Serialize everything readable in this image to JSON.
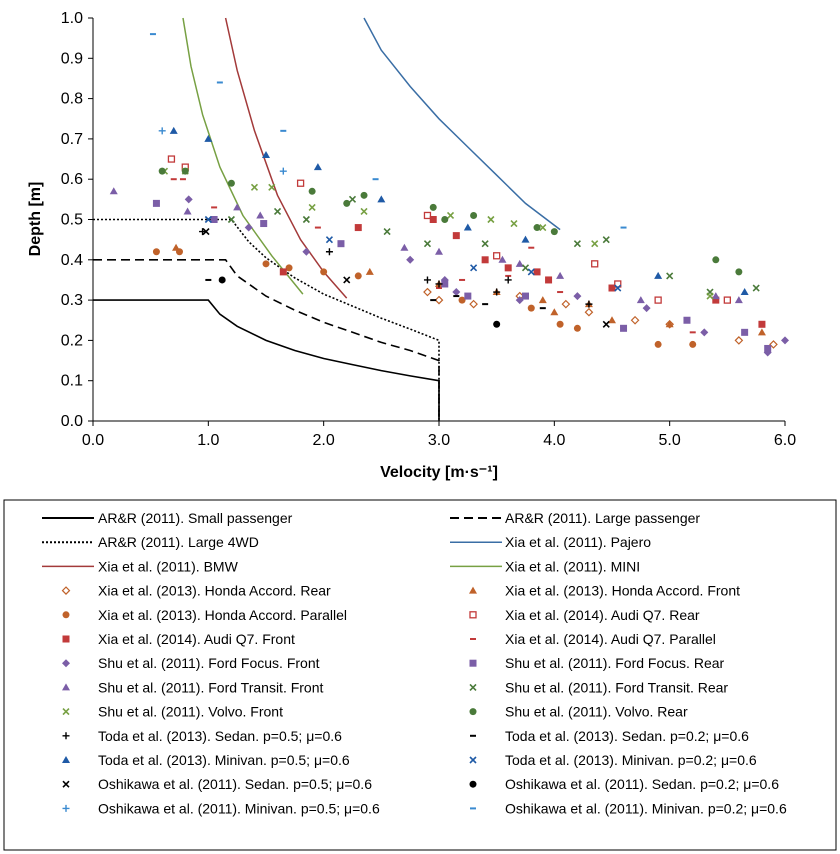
{
  "chart_data": {
    "type": "scatter",
    "xlabel": "Velocity [m·s⁻¹]",
    "ylabel": "Depth [m]",
    "xlim": [
      0,
      6
    ],
    "ylim": [
      0,
      1
    ],
    "x_ticks": [
      "0.0",
      "1.0",
      "2.0",
      "3.0",
      "4.0",
      "5.0",
      "6.0"
    ],
    "y_ticks": [
      "0.0",
      "0.1",
      "0.2",
      "0.3",
      "0.4",
      "0.5",
      "0.6",
      "0.7",
      "0.8",
      "0.9",
      "1.0"
    ],
    "grid": false,
    "legend_position": "bottom",
    "series": [
      {
        "name": "AR&R (2011). Small passenger",
        "kind": "line",
        "color": "#000000",
        "dash": "solid",
        "points": [
          [
            0,
            0.3
          ],
          [
            1.0,
            0.3
          ],
          [
            1.1,
            0.265
          ],
          [
            1.25,
            0.235
          ],
          [
            1.5,
            0.2
          ],
          [
            1.75,
            0.175
          ],
          [
            2.0,
            0.155
          ],
          [
            2.25,
            0.14
          ],
          [
            2.5,
            0.125
          ],
          [
            2.75,
            0.112
          ],
          [
            3.0,
            0.1
          ],
          [
            3.0,
            0.0
          ]
        ]
      },
      {
        "name": "AR&R (2011). Large passenger",
        "kind": "line",
        "color": "#000000",
        "dash": "dashed",
        "points": [
          [
            0,
            0.4
          ],
          [
            1.15,
            0.4
          ],
          [
            1.25,
            0.36
          ],
          [
            1.5,
            0.31
          ],
          [
            1.75,
            0.275
          ],
          [
            2.0,
            0.245
          ],
          [
            2.25,
            0.22
          ],
          [
            2.5,
            0.195
          ],
          [
            2.75,
            0.175
          ],
          [
            3.0,
            0.15
          ],
          [
            3.0,
            0.0
          ]
        ]
      },
      {
        "name": "AR&R (2011). Large 4WD",
        "kind": "line",
        "color": "#000000",
        "dash": "dotted",
        "points": [
          [
            0,
            0.5
          ],
          [
            1.2,
            0.5
          ],
          [
            1.35,
            0.445
          ],
          [
            1.5,
            0.405
          ],
          [
            1.75,
            0.355
          ],
          [
            2.0,
            0.315
          ],
          [
            2.25,
            0.285
          ],
          [
            2.5,
            0.255
          ],
          [
            2.75,
            0.228
          ],
          [
            3.0,
            0.2
          ],
          [
            3.0,
            0.0
          ]
        ]
      },
      {
        "name": "Xia et al. (2011). Pajero",
        "kind": "line",
        "color": "#3a6ea5",
        "dash": "solid",
        "points": [
          [
            2.35,
            1.0
          ],
          [
            2.5,
            0.92
          ],
          [
            2.75,
            0.83
          ],
          [
            3.0,
            0.75
          ],
          [
            3.25,
            0.68
          ],
          [
            3.5,
            0.61
          ],
          [
            3.75,
            0.54
          ],
          [
            4.05,
            0.475
          ]
        ]
      },
      {
        "name": "Xia et al. (2011). BMW",
        "kind": "line",
        "color": "#a33a3a",
        "dash": "solid",
        "points": [
          [
            1.15,
            1.0
          ],
          [
            1.25,
            0.87
          ],
          [
            1.4,
            0.72
          ],
          [
            1.6,
            0.56
          ],
          [
            1.8,
            0.45
          ],
          [
            2.0,
            0.37
          ],
          [
            2.2,
            0.305
          ]
        ]
      },
      {
        "name": "Xia et al. (2011). MINI",
        "kind": "line",
        "color": "#77a043",
        "dash": "solid",
        "points": [
          [
            0.78,
            1.0
          ],
          [
            0.85,
            0.88
          ],
          [
            0.95,
            0.76
          ],
          [
            1.1,
            0.63
          ],
          [
            1.3,
            0.51
          ],
          [
            1.55,
            0.41
          ],
          [
            1.82,
            0.315
          ]
        ]
      },
      {
        "name": "Xia et al. (2013). Honda Accord. Rear",
        "kind": "scatter",
        "marker": "diamond-open",
        "color": "#c0622a",
        "points": [
          [
            3.0,
            0.3
          ],
          [
            3.3,
            0.29
          ],
          [
            3.7,
            0.31
          ],
          [
            4.1,
            0.29
          ],
          [
            4.3,
            0.27
          ],
          [
            4.7,
            0.25
          ],
          [
            5.0,
            0.24
          ],
          [
            5.6,
            0.2
          ],
          [
            5.9,
            0.19
          ],
          [
            2.9,
            0.32
          ]
        ]
      },
      {
        "name": "Xia et al. (2013). Honda Accord. Front",
        "kind": "scatter",
        "marker": "triangle",
        "color": "#c0622a",
        "points": [
          [
            0.72,
            0.43
          ],
          [
            2.4,
            0.37
          ],
          [
            3.0,
            0.34
          ],
          [
            3.5,
            0.32
          ],
          [
            3.9,
            0.3
          ],
          [
            4.3,
            0.29
          ],
          [
            4.5,
            0.25
          ],
          [
            5.0,
            0.24
          ],
          [
            5.8,
            0.22
          ],
          [
            4.0,
            0.27
          ]
        ]
      },
      {
        "name": "Xia et al. (2013). Honda Accord. Parallel",
        "kind": "scatter",
        "marker": "circle",
        "color": "#c0622a",
        "points": [
          [
            0.55,
            0.42
          ],
          [
            0.75,
            0.42
          ],
          [
            1.5,
            0.39
          ],
          [
            1.7,
            0.38
          ],
          [
            2.0,
            0.37
          ],
          [
            2.3,
            0.36
          ],
          [
            3.2,
            0.3
          ],
          [
            3.8,
            0.28
          ],
          [
            4.05,
            0.24
          ],
          [
            4.2,
            0.23
          ],
          [
            4.9,
            0.19
          ],
          [
            5.2,
            0.19
          ]
        ]
      },
      {
        "name": "Xia et al. (2014). Audi Q7. Rear",
        "kind": "scatter",
        "marker": "square-open",
        "color": "#c23a3a",
        "points": [
          [
            0.68,
            0.65
          ],
          [
            0.8,
            0.63
          ],
          [
            1.8,
            0.59
          ],
          [
            2.9,
            0.51
          ],
          [
            3.5,
            0.41
          ],
          [
            4.35,
            0.39
          ],
          [
            4.55,
            0.34
          ],
          [
            4.9,
            0.3
          ],
          [
            5.5,
            0.3
          ]
        ]
      },
      {
        "name": "Xia et al. (2014). Audi Q7. Front",
        "kind": "scatter",
        "marker": "square",
        "color": "#c23a3a",
        "points": [
          [
            1.65,
            0.37
          ],
          [
            2.3,
            0.48
          ],
          [
            2.95,
            0.5
          ],
          [
            3.15,
            0.46
          ],
          [
            3.4,
            0.4
          ],
          [
            3.6,
            0.38
          ],
          [
            3.85,
            0.37
          ],
          [
            3.95,
            0.35
          ],
          [
            4.5,
            0.33
          ],
          [
            5.4,
            0.3
          ],
          [
            5.8,
            0.24
          ]
        ]
      },
      {
        "name": "Xia et al. (2014). Audi Q7. Parallel",
        "kind": "scatter",
        "marker": "dash",
        "color": "#c23a3a",
        "points": [
          [
            0.7,
            0.6
          ],
          [
            0.78,
            0.6
          ],
          [
            1.05,
            0.53
          ],
          [
            1.95,
            0.48
          ],
          [
            3.0,
            0.33
          ],
          [
            3.2,
            0.35
          ],
          [
            3.6,
            0.36
          ],
          [
            3.8,
            0.43
          ],
          [
            4.05,
            0.32
          ],
          [
            5.2,
            0.22
          ],
          [
            5.3,
            0.22
          ]
        ]
      },
      {
        "name": "Shu et al. (2011). Ford Focus. Front",
        "kind": "scatter",
        "marker": "diamond",
        "color": "#7b5ea7",
        "points": [
          [
            0.83,
            0.55
          ],
          [
            1.35,
            0.48
          ],
          [
            1.85,
            0.42
          ],
          [
            2.75,
            0.4
          ],
          [
            3.05,
            0.35
          ],
          [
            3.15,
            0.32
          ],
          [
            3.7,
            0.3
          ],
          [
            4.2,
            0.31
          ],
          [
            4.8,
            0.28
          ],
          [
            5.3,
            0.22
          ],
          [
            6.0,
            0.2
          ],
          [
            5.85,
            0.17
          ]
        ]
      },
      {
        "name": "Shu et al. (2011). Ford Focus. Rear",
        "kind": "scatter",
        "marker": "square",
        "color": "#7b5ea7",
        "points": [
          [
            0.55,
            0.54
          ],
          [
            1.05,
            0.5
          ],
          [
            1.48,
            0.49
          ],
          [
            2.15,
            0.44
          ],
          [
            3.05,
            0.34
          ],
          [
            3.25,
            0.31
          ],
          [
            3.75,
            0.31
          ],
          [
            4.6,
            0.23
          ],
          [
            5.15,
            0.25
          ],
          [
            5.65,
            0.22
          ],
          [
            5.85,
            0.18
          ]
        ]
      },
      {
        "name": "Shu et al. (2011). Ford Transit. Front",
        "kind": "scatter",
        "marker": "triangle",
        "color": "#7b5ea7",
        "points": [
          [
            0.18,
            0.57
          ],
          [
            0.82,
            0.52
          ],
          [
            1.25,
            0.53
          ],
          [
            1.45,
            0.51
          ],
          [
            2.7,
            0.43
          ],
          [
            3.0,
            0.42
          ],
          [
            3.55,
            0.4
          ],
          [
            3.7,
            0.39
          ],
          [
            4.05,
            0.36
          ],
          [
            4.75,
            0.3
          ],
          [
            5.4,
            0.31
          ],
          [
            5.6,
            0.3
          ]
        ]
      },
      {
        "name": "Shu et al. (2011). Ford Transit. Rear",
        "kind": "scatter",
        "marker": "x",
        "color": "#4a7a3a",
        "points": [
          [
            1.2,
            0.5
          ],
          [
            1.6,
            0.52
          ],
          [
            1.85,
            0.5
          ],
          [
            2.25,
            0.55
          ],
          [
            2.55,
            0.47
          ],
          [
            2.9,
            0.44
          ],
          [
            3.4,
            0.44
          ],
          [
            3.75,
            0.38
          ],
          [
            4.2,
            0.44
          ],
          [
            4.45,
            0.45
          ],
          [
            5.0,
            0.36
          ],
          [
            5.35,
            0.32
          ],
          [
            5.75,
            0.33
          ]
        ]
      },
      {
        "name": "Shu et al. (2011). Volvo. Front",
        "kind": "scatter",
        "marker": "x",
        "color": "#77a043",
        "points": [
          [
            0.62,
            0.62
          ],
          [
            0.8,
            0.62
          ],
          [
            1.4,
            0.58
          ],
          [
            1.55,
            0.58
          ],
          [
            1.9,
            0.53
          ],
          [
            2.35,
            0.52
          ],
          [
            3.1,
            0.51
          ],
          [
            3.45,
            0.5
          ],
          [
            3.65,
            0.49
          ],
          [
            3.9,
            0.48
          ],
          [
            4.35,
            0.44
          ],
          [
            5.35,
            0.31
          ]
        ]
      },
      {
        "name": "Shu et al. (2011). Volvo. Rear",
        "kind": "scatter",
        "marker": "circle",
        "color": "#4a7a3a",
        "points": [
          [
            0.6,
            0.62
          ],
          [
            0.8,
            0.62
          ],
          [
            1.2,
            0.59
          ],
          [
            1.9,
            0.57
          ],
          [
            2.2,
            0.54
          ],
          [
            2.35,
            0.56
          ],
          [
            2.95,
            0.53
          ],
          [
            3.05,
            0.5
          ],
          [
            3.3,
            0.51
          ],
          [
            3.85,
            0.48
          ],
          [
            4.0,
            0.47
          ],
          [
            5.4,
            0.4
          ],
          [
            5.6,
            0.37
          ]
        ]
      },
      {
        "name": "Toda et al. (2013). Sedan. p=0.5; μ=0.6",
        "kind": "scatter",
        "marker": "plus",
        "color": "#000000",
        "points": [
          [
            0.95,
            0.47
          ],
          [
            2.05,
            0.42
          ],
          [
            2.9,
            0.35
          ],
          [
            3.0,
            0.34
          ],
          [
            3.5,
            0.32
          ],
          [
            3.6,
            0.35
          ],
          [
            4.3,
            0.29
          ]
        ]
      },
      {
        "name": "Toda et al. (2013). Sedan. p=0.2; μ=0.6",
        "kind": "scatter",
        "marker": "dash",
        "color": "#000000",
        "points": [
          [
            1.0,
            0.35
          ],
          [
            2.95,
            0.3
          ],
          [
            3.15,
            0.31
          ],
          [
            3.4,
            0.29
          ],
          [
            3.9,
            0.28
          ]
        ]
      },
      {
        "name": "Toda et al. (2013). Minivan. p=0.5; μ=0.6",
        "kind": "scatter",
        "marker": "triangle",
        "color": "#1f5aa6",
        "points": [
          [
            0.7,
            0.72
          ],
          [
            1.0,
            0.7
          ],
          [
            1.5,
            0.66
          ],
          [
            1.95,
            0.63
          ],
          [
            2.5,
            0.55
          ],
          [
            3.25,
            0.48
          ],
          [
            3.75,
            0.45
          ],
          [
            4.9,
            0.36
          ],
          [
            5.65,
            0.32
          ]
        ]
      },
      {
        "name": "Toda et al. (2013). Minivan. p=0.2; μ=0.6",
        "kind": "scatter",
        "marker": "x",
        "color": "#1f5aa6",
        "points": [
          [
            1.0,
            0.5
          ],
          [
            2.05,
            0.45
          ],
          [
            3.3,
            0.38
          ],
          [
            3.8,
            0.37
          ],
          [
            4.55,
            0.33
          ]
        ]
      },
      {
        "name": "Oshikawa et al. (2011). Sedan. p=0.5; μ=0.6",
        "kind": "scatter",
        "marker": "x",
        "color": "#000000",
        "points": [
          [
            0.98,
            0.47
          ],
          [
            2.2,
            0.35
          ],
          [
            4.45,
            0.24
          ]
        ]
      },
      {
        "name": "Oshikawa et al. (2011). Sedan. p=0.2; μ=0.6",
        "kind": "scatter",
        "marker": "circle",
        "color": "#000000",
        "points": [
          [
            1.12,
            0.35
          ],
          [
            3.5,
            0.24
          ]
        ]
      },
      {
        "name": "Oshikawa et al. (2011). Minivan. p=0.5; μ=0.6",
        "kind": "scatter",
        "marker": "plus",
        "color": "#3a8ad0",
        "points": [
          [
            0.6,
            0.72
          ],
          [
            1.65,
            0.62
          ]
        ]
      },
      {
        "name": "Oshikawa et al. (2011). Minivan. p=0.2; μ=0.6",
        "kind": "scatter",
        "marker": "dash",
        "color": "#3a8ad0",
        "points": [
          [
            0.52,
            0.96
          ],
          [
            1.1,
            0.84
          ],
          [
            1.65,
            0.72
          ],
          [
            2.45,
            0.6
          ],
          [
            4.6,
            0.48
          ]
        ]
      }
    ]
  }
}
